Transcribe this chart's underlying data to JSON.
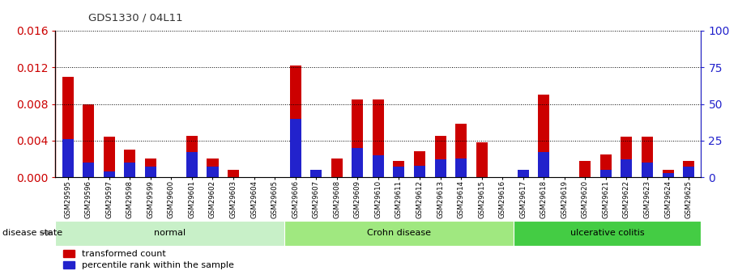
{
  "title": "GDS1330 / 04L11",
  "categories": [
    "GSM29595",
    "GSM29596",
    "GSM29597",
    "GSM29598",
    "GSM29599",
    "GSM29600",
    "GSM29601",
    "GSM29602",
    "GSM29603",
    "GSM29604",
    "GSM29605",
    "GSM29606",
    "GSM29607",
    "GSM29608",
    "GSM29609",
    "GSM29610",
    "GSM29611",
    "GSM29612",
    "GSM29613",
    "GSM29614",
    "GSM29615",
    "GSM29616",
    "GSM29617",
    "GSM29618",
    "GSM29619",
    "GSM29620",
    "GSM29621",
    "GSM29622",
    "GSM29623",
    "GSM29624",
    "GSM29625"
  ],
  "red_values": [
    0.011,
    0.008,
    0.0044,
    0.003,
    0.002,
    0.0,
    0.0045,
    0.002,
    0.0008,
    0.0,
    0.0,
    0.0122,
    0.0008,
    0.002,
    0.0085,
    0.0085,
    0.0018,
    0.0028,
    0.0045,
    0.0058,
    0.0038,
    0.0,
    0.0002,
    0.009,
    0.0,
    0.0018,
    0.0025,
    0.0044,
    0.0044,
    0.0008,
    0.0018
  ],
  "blue_pct": [
    26,
    10,
    4,
    10,
    7,
    0,
    17,
    7,
    0,
    0,
    0,
    40,
    5,
    0,
    20,
    15,
    7,
    8,
    12,
    13,
    0,
    0,
    5,
    17,
    0,
    0,
    5,
    12,
    10,
    3,
    7
  ],
  "groups": [
    {
      "label": "normal",
      "start": 0,
      "end": 10,
      "color": "#c8f0c8"
    },
    {
      "label": "Crohn disease",
      "start": 11,
      "end": 21,
      "color": "#a0e880"
    },
    {
      "label": "ulcerative colitis",
      "start": 22,
      "end": 30,
      "color": "#44cc44"
    }
  ],
  "ylim_left": [
    0,
    0.016
  ],
  "ylim_right": [
    0,
    100
  ],
  "yticks_left": [
    0,
    0.004,
    0.008,
    0.012,
    0.016
  ],
  "yticks_right": [
    0,
    25,
    50,
    75,
    100
  ],
  "bar_color_red": "#cc0000",
  "bar_color_blue": "#2222cc",
  "disease_state_label": "disease state",
  "legend_red": "transformed count",
  "legend_blue": "percentile rank within the sample",
  "left_axis_color": "#cc0000",
  "right_axis_color": "#2222cc",
  "title_color": "#333333"
}
